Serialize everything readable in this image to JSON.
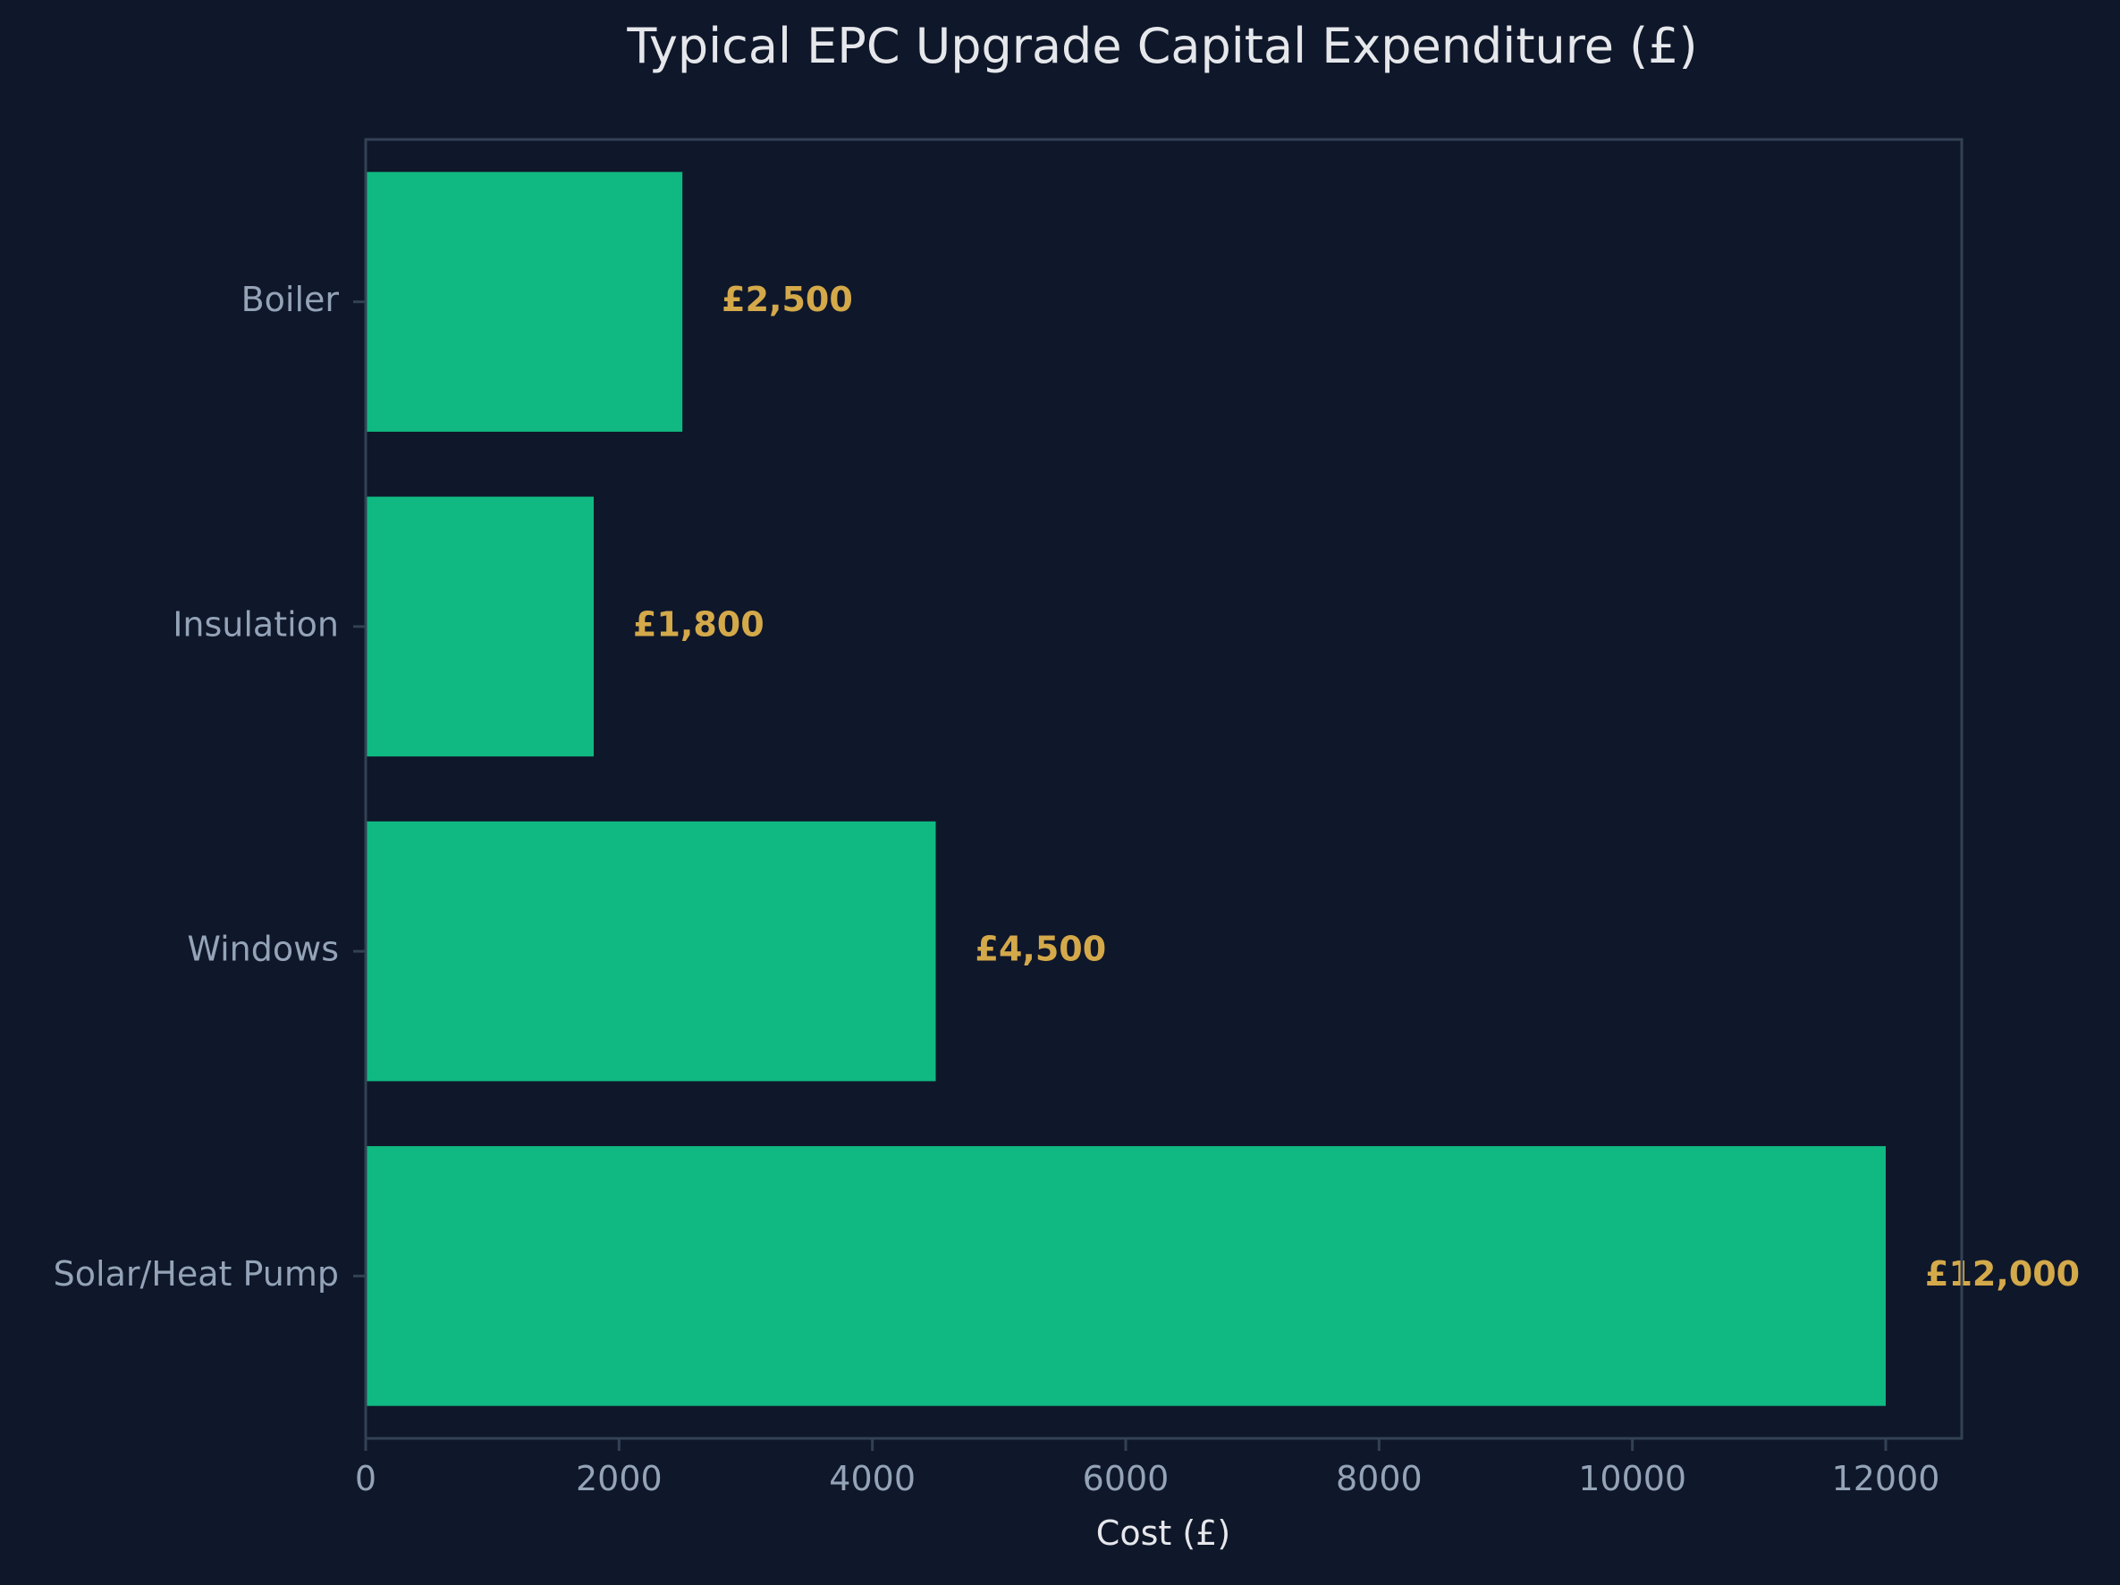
{
  "chart_data": {
    "type": "bar",
    "orientation": "horizontal",
    "title": "Typical EPC Upgrade Capital Expenditure (£)",
    "xlabel": "Cost (£)",
    "ylabel": "",
    "categories": [
      "Boiler",
      "Insulation",
      "Windows",
      "Solar/Heat Pump"
    ],
    "values": [
      2500,
      1800,
      4500,
      12000
    ],
    "value_labels": [
      "£2,500",
      "£1,800",
      "£4,500",
      "£12,000"
    ],
    "xlim": [
      0,
      12600
    ],
    "xticks": [
      0,
      2000,
      4000,
      6000,
      8000,
      10000,
      12000
    ],
    "xtick_labels": [
      "0",
      "2000",
      "4000",
      "6000",
      "8000",
      "10000",
      "12000"
    ],
    "grid": false,
    "colors": {
      "background": "#0f172a",
      "bar": "#10b981",
      "value_label": "#d4a94a",
      "title": "#e5e7eb",
      "axis_label": "#e5e7eb",
      "tick_label": "#94a3b8",
      "spine": "#334155"
    }
  }
}
